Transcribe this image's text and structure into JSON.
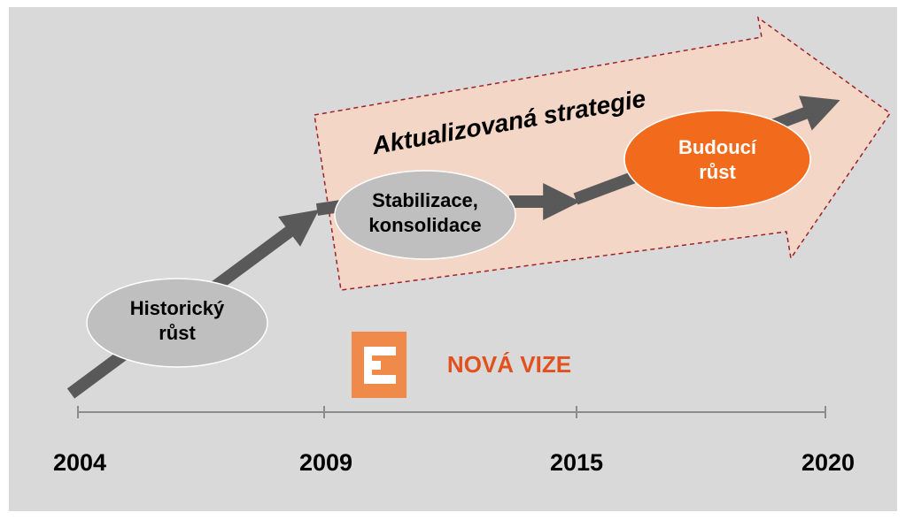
{
  "banner": "Aktualizovaná strategie",
  "stages": [
    {
      "lines": [
        "Historický",
        "růst"
      ]
    },
    {
      "lines": [
        "Stabilizace,",
        "konsolidace"
      ]
    },
    {
      "lines": [
        "Budoucí",
        "růst"
      ]
    }
  ],
  "logo": "NOVÁ VIZE",
  "timeline": [
    "2004",
    "2009",
    "2015",
    "2020"
  ]
}
